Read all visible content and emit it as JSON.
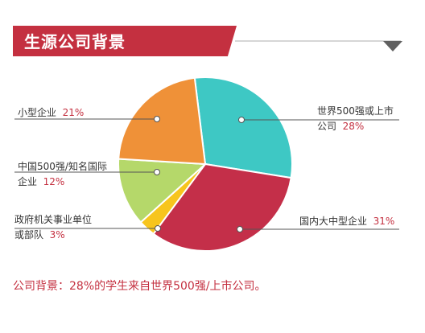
{
  "header": {
    "title": "生源公司背景"
  },
  "labels": {
    "small": {
      "name": "小型企业",
      "pct": "21%"
    },
    "cn500": {
      "name": "中国500强/知名国际",
      "name2": "企业",
      "pct": "12%"
    },
    "gov": {
      "name": "政府机关事业单位",
      "name2": "或部队",
      "pct": "3%"
    },
    "world500": {
      "name": "世界500强或上市",
      "name2": "公司",
      "pct": "28%"
    },
    "domestic": {
      "name": "国内大中型企业",
      "pct": "31%"
    }
  },
  "footer": {
    "text": "公司背景：28%的学生来自世界500强/上市公司。"
  },
  "chart_data": {
    "type": "pie",
    "categories": [
      "世界500强或上市公司",
      "国内大中型企业",
      "政府机关事业单位或部队",
      "中国500强/知名国际企业",
      "小型企业"
    ],
    "values": [
      28,
      31,
      3,
      12,
      21
    ],
    "colors": [
      "#3ec8c4",
      "#c42f49",
      "#f7c51d",
      "#b5d86a",
      "#ef9138"
    ]
  }
}
